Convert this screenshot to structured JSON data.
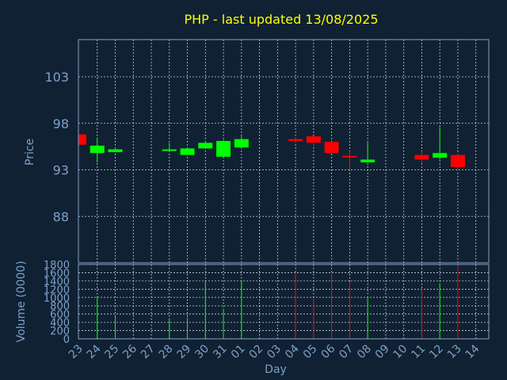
{
  "chart_data": [
    {
      "type": "candlestick",
      "title": "PHP - last updated 13/08/2025",
      "ylabel": "Price",
      "ylim": [
        83,
        107
      ],
      "yticks": [
        88,
        93,
        98,
        103
      ],
      "grid": true,
      "categories": [
        "23",
        "24",
        "25",
        "26",
        "27",
        "28",
        "29",
        "30",
        "31",
        "01",
        "02",
        "03",
        "04",
        "05",
        "06",
        "07",
        "08",
        "09",
        "10",
        "11",
        "12",
        "13",
        "14"
      ],
      "candles": [
        {
          "x": "23",
          "open": 95.7,
          "high": 96.8,
          "low": 95.7,
          "close": 96.8,
          "color": "red"
        },
        {
          "x": "24",
          "open": 94.8,
          "high": 96.4,
          "low": 93.8,
          "close": 95.6,
          "color": "green"
        },
        {
          "x": "25",
          "open": 94.9,
          "high": 95.4,
          "low": 94.9,
          "close": 95.2,
          "color": "green"
        },
        {
          "x": "28",
          "open": 95.1,
          "high": 95.9,
          "low": 94.9,
          "close": 95.2,
          "color": "green"
        },
        {
          "x": "29",
          "open": 94.6,
          "high": 95.4,
          "low": 94.6,
          "close": 95.3,
          "color": "green"
        },
        {
          "x": "30",
          "open": 95.3,
          "high": 96.1,
          "low": 95.3,
          "close": 95.9,
          "color": "green"
        },
        {
          "x": "31",
          "open": 94.4,
          "high": 96.2,
          "low": 94.4,
          "close": 96.1,
          "color": "green"
        },
        {
          "x": "01",
          "open": 95.4,
          "high": 96.7,
          "low": 95.4,
          "close": 96.3,
          "color": "green"
        },
        {
          "x": "04",
          "open": 96.1,
          "high": 96.4,
          "low": 95.9,
          "close": 96.3,
          "color": "red"
        },
        {
          "x": "05",
          "open": 95.9,
          "high": 96.6,
          "low": 95.5,
          "close": 96.6,
          "color": "red"
        },
        {
          "x": "06",
          "open": 94.8,
          "high": 96.0,
          "low": 94.8,
          "close": 96.0,
          "color": "red"
        },
        {
          "x": "07",
          "open": 94.4,
          "high": 95.0,
          "low": 93.0,
          "close": 94.5,
          "color": "red"
        },
        {
          "x": "08",
          "open": 93.8,
          "high": 96.1,
          "low": 93.8,
          "close": 94.1,
          "color": "green"
        },
        {
          "x": "11",
          "open": 94.1,
          "high": 95.0,
          "low": 93.7,
          "close": 94.6,
          "color": "red"
        },
        {
          "x": "12",
          "open": 94.3,
          "high": 97.6,
          "low": 94.1,
          "close": 94.8,
          "color": "green"
        },
        {
          "x": "13",
          "open": 93.3,
          "high": 94.8,
          "low": 92.9,
          "close": 94.6,
          "color": "red"
        }
      ]
    },
    {
      "type": "bar",
      "ylabel": "Volume (0000)",
      "xlabel": "Day",
      "ylim": [
        0,
        1800
      ],
      "yticks": [
        0,
        200,
        400,
        600,
        800,
        1000,
        1200,
        1400,
        1600,
        1800
      ],
      "categories": [
        "23",
        "24",
        "25",
        "26",
        "27",
        "28",
        "29",
        "30",
        "31",
        "01",
        "02",
        "03",
        "04",
        "05",
        "06",
        "07",
        "08",
        "09",
        "10",
        "11",
        "12",
        "13",
        "14"
      ],
      "bars": [
        {
          "x": "24",
          "value": 1000,
          "color": "green"
        },
        {
          "x": "25",
          "value": 550,
          "color": "green"
        },
        {
          "x": "28",
          "value": 480,
          "color": "green"
        },
        {
          "x": "29",
          "value": 520,
          "color": "green"
        },
        {
          "x": "30",
          "value": 1400,
          "color": "green"
        },
        {
          "x": "31",
          "value": 730,
          "color": "green"
        },
        {
          "x": "01",
          "value": 1420,
          "color": "green"
        },
        {
          "x": "04",
          "value": 1580,
          "color": "red"
        },
        {
          "x": "05",
          "value": 970,
          "color": "red"
        },
        {
          "x": "06",
          "value": 1580,
          "color": "red"
        },
        {
          "x": "07",
          "value": 1380,
          "color": "red"
        },
        {
          "x": "08",
          "value": 980,
          "color": "green"
        },
        {
          "x": "11",
          "value": 1200,
          "color": "red"
        },
        {
          "x": "12",
          "value": 1330,
          "color": "green"
        },
        {
          "x": "13",
          "value": 1800,
          "color": "red"
        }
      ]
    }
  ],
  "colors": {
    "up": "#00ff00",
    "down": "#ff0000",
    "background": "#0f2133",
    "title": "#ffff00",
    "axis_text": "#7fa0c8"
  }
}
